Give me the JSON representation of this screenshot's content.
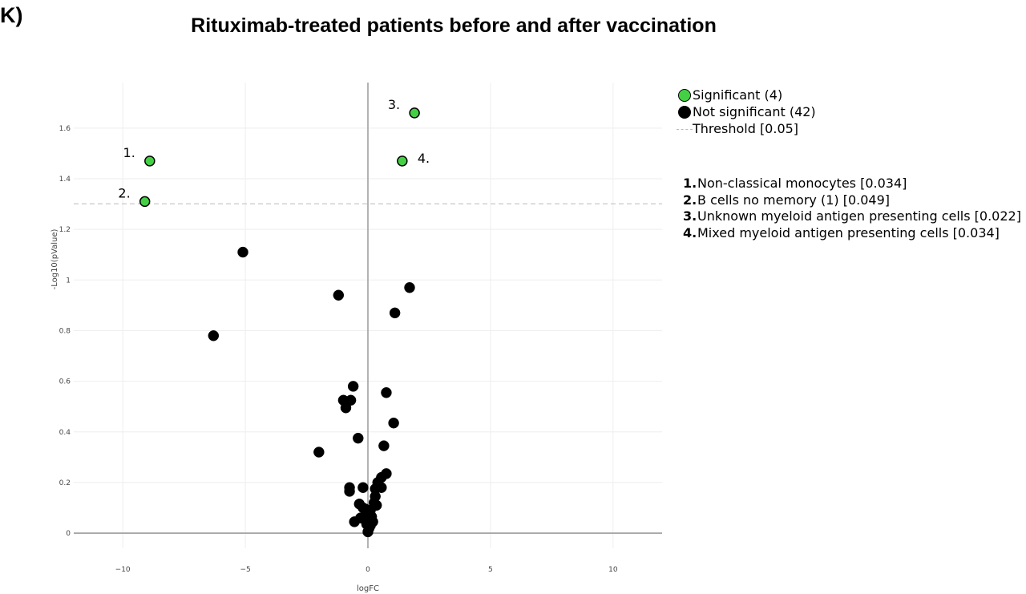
{
  "panel_letter": "K)",
  "chart_data": {
    "type": "scatter",
    "title": "Rituximab-treated patients before and after vaccination",
    "xlabel": "logFC",
    "ylabel": "-Log10(pValue)",
    "xlim": [
      -12,
      12
    ],
    "ylim": [
      -0.06,
      1.78
    ],
    "xticks": [
      -10,
      -5,
      0,
      5,
      10
    ],
    "yticks": [
      0,
      0.2,
      0.4,
      0.6,
      0.8,
      1,
      1.2,
      1.4,
      1.6
    ],
    "ytick_labels": [
      "0",
      "0.2",
      "0.4",
      "0.6",
      "0.8",
      "1",
      "1.2",
      "1.4",
      "1.6"
    ],
    "xtick_labels": [
      "−10",
      "−5",
      "0",
      "5",
      "10"
    ],
    "grid": true,
    "threshold": {
      "y": 1.301,
      "label": "Threshold [0.05]",
      "style": "dashed",
      "color": "#c8c8c8"
    },
    "series": [
      {
        "name": "Significant (4)",
        "color": "#44d044",
        "points": [
          {
            "x": -8.9,
            "y": 1.47,
            "label": "1."
          },
          {
            "x": -9.1,
            "y": 1.31,
            "label": "2."
          },
          {
            "x": 1.9,
            "y": 1.66,
            "label": "3."
          },
          {
            "x": 1.4,
            "y": 1.47,
            "label": "4."
          }
        ]
      },
      {
        "name": "Not significant (42)",
        "color": "#000000",
        "points": [
          {
            "x": -5.1,
            "y": 1.11
          },
          {
            "x": -6.3,
            "y": 0.78
          },
          {
            "x": -1.2,
            "y": 0.94
          },
          {
            "x": 1.7,
            "y": 0.97
          },
          {
            "x": 1.1,
            "y": 0.87
          },
          {
            "x": -0.6,
            "y": 0.58
          },
          {
            "x": -1.0,
            "y": 0.525
          },
          {
            "x": -0.7,
            "y": 0.525
          },
          {
            "x": -0.9,
            "y": 0.495
          },
          {
            "x": 0.75,
            "y": 0.555
          },
          {
            "x": 1.05,
            "y": 0.435
          },
          {
            "x": -0.4,
            "y": 0.375
          },
          {
            "x": 0.65,
            "y": 0.345
          },
          {
            "x": -2.0,
            "y": 0.32
          },
          {
            "x": 0.75,
            "y": 0.235
          },
          {
            "x": 0.55,
            "y": 0.22
          },
          {
            "x": 0.4,
            "y": 0.2
          },
          {
            "x": 0.55,
            "y": 0.18
          },
          {
            "x": 0.3,
            "y": 0.175
          },
          {
            "x": -0.75,
            "y": 0.18
          },
          {
            "x": -0.75,
            "y": 0.165
          },
          {
            "x": -0.2,
            "y": 0.18
          },
          {
            "x": 0.3,
            "y": 0.145
          },
          {
            "x": 0.25,
            "y": 0.12
          },
          {
            "x": -0.35,
            "y": 0.115
          },
          {
            "x": -0.2,
            "y": 0.1
          },
          {
            "x": 0.05,
            "y": 0.085
          },
          {
            "x": -0.1,
            "y": 0.07
          },
          {
            "x": 0.15,
            "y": 0.065
          },
          {
            "x": -0.15,
            "y": 0.055
          },
          {
            "x": 0.1,
            "y": 0.05
          },
          {
            "x": -0.55,
            "y": 0.045
          },
          {
            "x": 0.2,
            "y": 0.045
          },
          {
            "x": -0.05,
            "y": 0.035
          },
          {
            "x": 0.1,
            "y": 0.03
          },
          {
            "x": 0.05,
            "y": 0.02
          },
          {
            "x": 0.0,
            "y": 0.005
          },
          {
            "x": -0.1,
            "y": 0.095
          },
          {
            "x": 0.35,
            "y": 0.11
          },
          {
            "x": -0.3,
            "y": 0.06
          },
          {
            "x": 0.0,
            "y": 0.075
          },
          {
            "x": 0.1,
            "y": 0.09
          }
        ]
      }
    ],
    "legend": {
      "placement": "top-right",
      "items": [
        {
          "label": "Significant (4)",
          "kind": "dot",
          "color": "#44d044"
        },
        {
          "label": "Not significant (42)",
          "kind": "dot",
          "color": "#000000"
        },
        {
          "label": "Threshold [0.05]",
          "kind": "dash",
          "color": "#c8c8c8"
        }
      ]
    },
    "annotations": [
      {
        "num": "1.",
        "text": "Non-classical monocytes  [0.034]"
      },
      {
        "num": "2.",
        "text": "B cells no memory (1) [0.049]"
      },
      {
        "num": "3.",
        "text": "Unknown myeloid antigen presenting cells [0.022]"
      },
      {
        "num": "4.",
        "text": "Mixed myeloid antigen presenting cells [0.034]"
      }
    ]
  }
}
